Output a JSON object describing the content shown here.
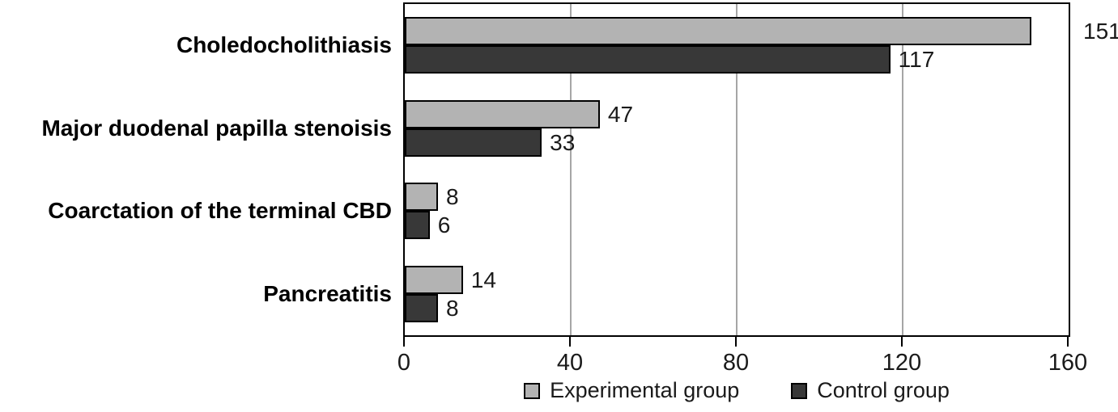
{
  "chart_data": {
    "type": "bar",
    "orientation": "horizontal",
    "title": "",
    "xlabel": "",
    "ylabel": "",
    "categories": [
      "Choledocholithiasis",
      "Major duodenal papilla stenoisis",
      "Coarctation of the terminal CBD",
      "Pancreatitis"
    ],
    "series": [
      {
        "name": "Experimental group",
        "color": "#b3b3b3",
        "values": [
          151,
          47,
          8,
          14
        ]
      },
      {
        "name": "Control group",
        "color": "#383838",
        "values": [
          117,
          33,
          6,
          8
        ]
      }
    ],
    "xlim": [
      0,
      160
    ],
    "xticks": [
      0,
      40,
      80,
      120,
      160
    ],
    "grid": true,
    "gridline_values": [
      40,
      80,
      120
    ],
    "value_labels": true,
    "legend_position": "bottom"
  },
  "colors": {
    "plot_border": "#000000",
    "gridline": "#a6a6a6",
    "bar_border": "#000000",
    "text": "#1a1a1a",
    "background": "#ffffff"
  }
}
